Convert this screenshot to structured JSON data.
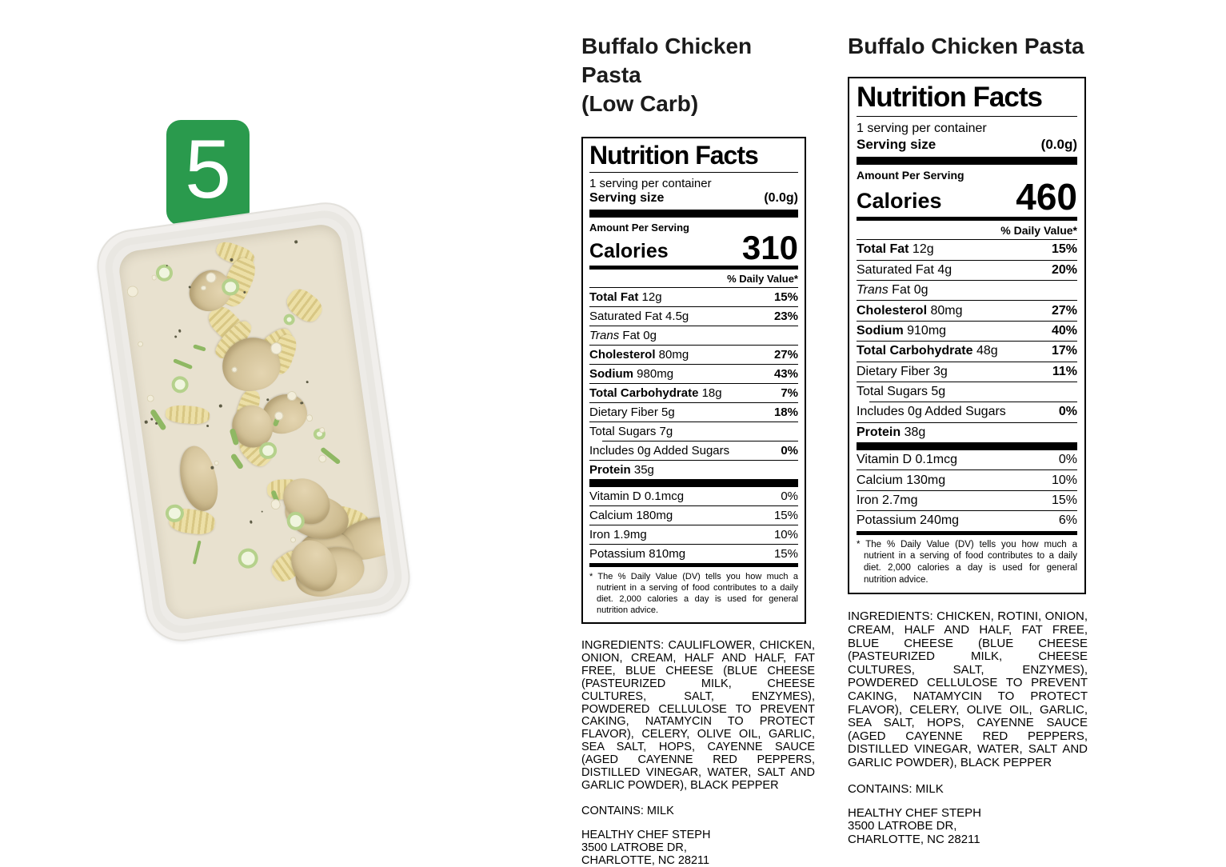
{
  "photo": {
    "badge": "5",
    "badge_color": "#2a9a4d"
  },
  "panels": [
    {
      "title": "Buffalo Chicken Pasta",
      "subtitle": "(Low Carb)",
      "label": {
        "heading": "Nutrition Facts",
        "servings": "1 serving per container",
        "serving_size_label": "Serving size",
        "serving_size_value": "(0.0g)",
        "amount_per": "Amount Per Serving",
        "calories_label": "Calories",
        "calories": "310",
        "dv_header": "% Daily Value*",
        "rows": [
          {
            "bold": "Total Fat",
            "text": "12g",
            "dv": "15%",
            "indent": 0
          },
          {
            "text": "Saturated Fat 4.5g",
            "dv": "23%",
            "indent": 1
          },
          {
            "italic": "Trans",
            "text": "Fat 0g",
            "dv": "",
            "indent": 1
          },
          {
            "bold": "Cholesterol",
            "text": "80mg",
            "dv": "27%",
            "indent": 0
          },
          {
            "bold": "Sodium",
            "text": "980mg",
            "dv": "43%",
            "indent": 0
          },
          {
            "bold": "Total Carbohydrate",
            "text": "18g",
            "dv": "7%",
            "indent": 0
          },
          {
            "text": "Dietary Fiber 5g",
            "dv": "18%",
            "indent": 1
          },
          {
            "text": "Total Sugars 7g",
            "dv": "",
            "indent": 1
          },
          {
            "text": "Includes 0g Added Sugars",
            "dv": "0%",
            "indent": 2,
            "sep_indent": 16
          },
          {
            "bold": "Protein",
            "text": "35g",
            "dv": "",
            "indent": 0
          }
        ],
        "vitamins": [
          {
            "text": "Vitamin D 0.1mcg",
            "dv": "0%"
          },
          {
            "text": "Calcium 180mg",
            "dv": "15%"
          },
          {
            "text": "Iron 1.9mg",
            "dv": "10%"
          },
          {
            "text": "Potassium 810mg",
            "dv": "15%"
          }
        ],
        "footnote": "* The % Daily Value (DV) tells you how much a nutrient in a serving of food contributes to a daily diet. 2,000 calories a day is used for general nutrition advice."
      },
      "ingredients": "INGREDIENTS: CAULIFLOWER, CHICKEN, ONION, CREAM, HALF AND HALF, FAT FREE, BLUE CHEESE (BLUE CHEESE (PASTEURIZED MILK, CHEESE CULTURES, SALT, ENZYMES), POWDERED CELLULOSE TO PREVENT CAKING, NATAMYCIN TO PROTECT FLAVOR), CELERY, OLIVE OIL, GARLIC, SEA SALT, HOPS, CAYENNE SAUCE (AGED CAYENNE RED PEPPERS, DISTILLED VINEGAR, WATER, SALT AND GARLIC POWDER), BLACK PEPPER",
      "contains": "CONTAINS: MILK",
      "address": [
        "HEALTHY CHEF STEPH",
        "3500 LATROBE DR,",
        "CHARLOTTE, NC 28211"
      ]
    },
    {
      "title": "Buffalo Chicken Pasta",
      "subtitle": "",
      "label": {
        "heading": "Nutrition Facts",
        "servings": "1 serving per container",
        "serving_size_label": "Serving size",
        "serving_size_value": "(0.0g)",
        "amount_per": "Amount Per Serving",
        "calories_label": "Calories",
        "calories": "460",
        "dv_header": "% Daily Value*",
        "rows": [
          {
            "bold": "Total Fat",
            "text": "12g",
            "dv": "15%",
            "indent": 0
          },
          {
            "text": "Saturated Fat 4g",
            "dv": "20%",
            "indent": 1
          },
          {
            "italic": "Trans",
            "text": "Fat 0g",
            "dv": "",
            "indent": 1
          },
          {
            "bold": "Cholesterol",
            "text": "80mg",
            "dv": "27%",
            "indent": 0
          },
          {
            "bold": "Sodium",
            "text": "910mg",
            "dv": "40%",
            "indent": 0
          },
          {
            "bold": "Total Carbohydrate",
            "text": "48g",
            "dv": "17%",
            "indent": 0
          },
          {
            "text": "Dietary Fiber 3g",
            "dv": "11%",
            "indent": 1
          },
          {
            "text": "Total Sugars 5g",
            "dv": "",
            "indent": 1
          },
          {
            "text": "Includes 0g Added Sugars",
            "dv": "0%",
            "indent": 2,
            "sep_indent": 16
          },
          {
            "bold": "Protein",
            "text": "38g",
            "dv": "",
            "indent": 0
          }
        ],
        "vitamins": [
          {
            "text": "Vitamin D 0.1mcg",
            "dv": "0%"
          },
          {
            "text": "Calcium 130mg",
            "dv": "10%"
          },
          {
            "text": "Iron 2.7mg",
            "dv": "15%"
          },
          {
            "text": "Potassium 240mg",
            "dv": "6%"
          }
        ],
        "footnote": "* The % Daily Value (DV) tells you how much a nutrient in a serving of food contributes to a daily diet. 2,000 calories a day is used for general nutrition advice."
      },
      "ingredients": "INGREDIENTS: CHICKEN, ROTINI, ONION, CREAM, HALF AND HALF, FAT FREE, BLUE CHEESE (BLUE CHEESE (PASTEURIZED MILK, CHEESE CULTURES, SALT, ENZYMES), POWDERED CELLULOSE TO PREVENT CAKING, NATAMYCIN TO PROTECT FLAVOR), CELERY, OLIVE OIL, GARLIC, SEA SALT, HOPS, CAYENNE SAUCE (AGED CAYENNE RED PEPPERS, DISTILLED VINEGAR, WATER, SALT AND GARLIC POWDER), BLACK PEPPER",
      "contains": "CONTAINS: MILK",
      "address": [
        "HEALTHY CHEF STEPH",
        "3500 LATROBE DR,",
        "CHARLOTTE, NC 28211"
      ]
    }
  ]
}
